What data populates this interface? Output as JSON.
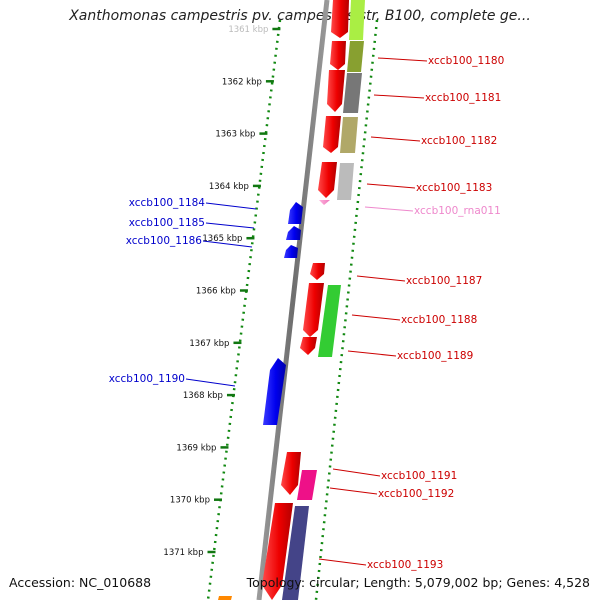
{
  "title": "Xanthomonas campestris pv. campestris str. B100, complete ge...",
  "footer": {
    "accession": "Accession: NC_010688",
    "summary": "Topology: circular; Length: 5,079,002 bp; Genes: 4,528"
  },
  "ticks": [
    {
      "label": "1361 kbp",
      "kbp": 1361
    },
    {
      "label": "1362 kbp",
      "kbp": 1362
    },
    {
      "label": "1363 kbp",
      "kbp": 1363
    },
    {
      "label": "1364 kbp",
      "kbp": 1364
    },
    {
      "label": "1365 kbp",
      "kbp": 1365
    },
    {
      "label": "1366 kbp",
      "kbp": 1366
    },
    {
      "label": "1367 kbp",
      "kbp": 1367
    },
    {
      "label": "1368 kbp",
      "kbp": 1368
    },
    {
      "label": "1369 kbp",
      "kbp": 1369
    },
    {
      "label": "1370 kbp",
      "kbp": 1370
    },
    {
      "label": "1371 kbp",
      "kbp": 1371
    }
  ],
  "genes": [
    {
      "label": "xccb100_1180",
      "strand": "-",
      "color": "#cc0000"
    },
    {
      "label": "xccb100_1181",
      "strand": "-",
      "color": "#cc0000"
    },
    {
      "label": "xccb100_1182",
      "strand": "-",
      "color": "#cc0000"
    },
    {
      "label": "xccb100_1183",
      "strand": "-",
      "color": "#cc0000"
    },
    {
      "label": "xccb100_rna011",
      "strand": "-",
      "color": "#ee88cc"
    },
    {
      "label": "xccb100_1184",
      "strand": "+",
      "color": "#0000cc"
    },
    {
      "label": "xccb100_1185",
      "strand": "+",
      "color": "#0000cc"
    },
    {
      "label": "xccb100_1186",
      "strand": "+",
      "color": "#0000cc"
    },
    {
      "label": "xccb100_1187",
      "strand": "-",
      "color": "#cc0000"
    },
    {
      "label": "xccb100_1188",
      "strand": "-",
      "color": "#cc0000"
    },
    {
      "label": "xccb100_1189",
      "strand": "-",
      "color": "#cc0000"
    },
    {
      "label": "xccb100_1190",
      "strand": "+",
      "color": "#0000cc"
    },
    {
      "label": "xccb100_1191",
      "strand": "-",
      "color": "#cc0000"
    },
    {
      "label": "xccb100_1192",
      "strand": "-",
      "color": "#cc0000"
    },
    {
      "label": "xccb100_1193",
      "strand": "-",
      "color": "#cc0000"
    }
  ]
}
